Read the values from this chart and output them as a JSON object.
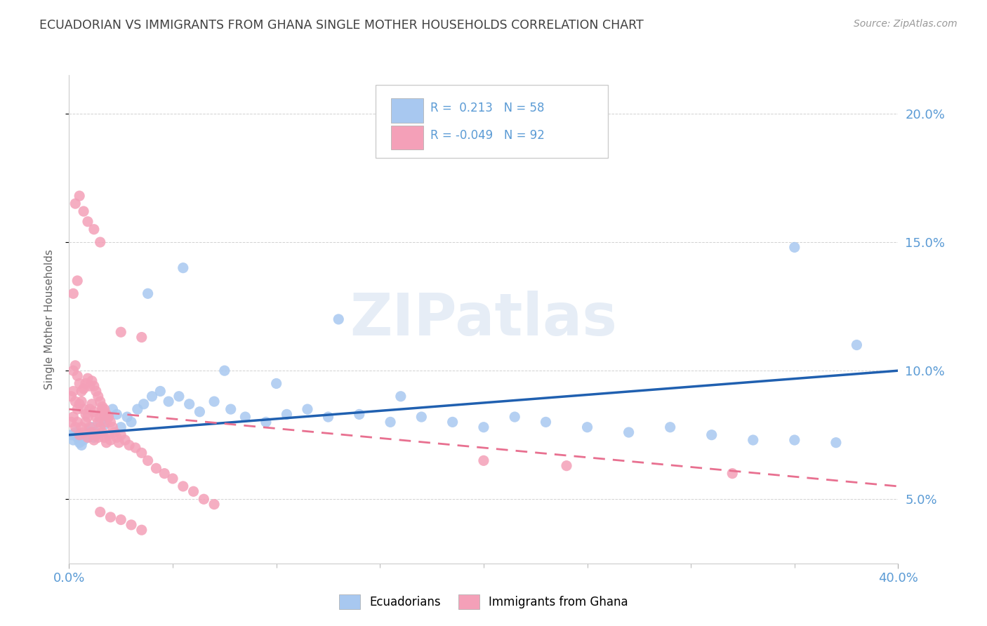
{
  "title": "ECUADORIAN VS IMMIGRANTS FROM GHANA SINGLE MOTHER HOUSEHOLDS CORRELATION CHART",
  "source": "Source: ZipAtlas.com",
  "ylabel": "Single Mother Households",
  "legend_blue": {
    "R": "0.213",
    "N": "58",
    "label": "Ecuadorians"
  },
  "legend_pink": {
    "R": "-0.049",
    "N": "92",
    "label": "Immigrants from Ghana"
  },
  "blue_color": "#a8c8f0",
  "pink_color": "#f4a0b8",
  "line_blue_color": "#2060b0",
  "line_pink_color": "#e87090",
  "yticks": [
    0.05,
    0.1,
    0.15,
    0.2
  ],
  "ytick_labels": [
    "5.0%",
    "10.0%",
    "15.0%",
    "20.0%"
  ],
  "xmin": 0.0,
  "xmax": 0.4,
  "ymin": 0.025,
  "ymax": 0.215,
  "blue_x": [
    0.001,
    0.002,
    0.003,
    0.004,
    0.005,
    0.006,
    0.007,
    0.008,
    0.009,
    0.01,
    0.011,
    0.012,
    0.013,
    0.015,
    0.017,
    0.019,
    0.021,
    0.023,
    0.025,
    0.028,
    0.03,
    0.033,
    0.036,
    0.04,
    0.044,
    0.048,
    0.053,
    0.058,
    0.063,
    0.07,
    0.078,
    0.085,
    0.095,
    0.105,
    0.115,
    0.125,
    0.14,
    0.155,
    0.17,
    0.185,
    0.2,
    0.215,
    0.23,
    0.25,
    0.27,
    0.29,
    0.31,
    0.33,
    0.35,
    0.37,
    0.038,
    0.055,
    0.075,
    0.1,
    0.13,
    0.16,
    0.35,
    0.38
  ],
  "blue_y": [
    0.075,
    0.073,
    0.076,
    0.074,
    0.072,
    0.071,
    0.073,
    0.075,
    0.074,
    0.076,
    0.078,
    0.074,
    0.076,
    0.08,
    0.079,
    0.082,
    0.085,
    0.083,
    0.078,
    0.082,
    0.08,
    0.085,
    0.087,
    0.09,
    0.092,
    0.088,
    0.09,
    0.087,
    0.084,
    0.088,
    0.085,
    0.082,
    0.08,
    0.083,
    0.085,
    0.082,
    0.083,
    0.08,
    0.082,
    0.08,
    0.078,
    0.082,
    0.08,
    0.078,
    0.076,
    0.078,
    0.075,
    0.073,
    0.073,
    0.072,
    0.13,
    0.14,
    0.1,
    0.095,
    0.12,
    0.09,
    0.148,
    0.11
  ],
  "pink_x": [
    0.001,
    0.002,
    0.003,
    0.004,
    0.005,
    0.006,
    0.007,
    0.008,
    0.009,
    0.01,
    0.011,
    0.012,
    0.013,
    0.014,
    0.015,
    0.016,
    0.017,
    0.018,
    0.019,
    0.02,
    0.001,
    0.002,
    0.003,
    0.004,
    0.005,
    0.006,
    0.007,
    0.008,
    0.009,
    0.01,
    0.011,
    0.012,
    0.013,
    0.014,
    0.015,
    0.016,
    0.017,
    0.018,
    0.019,
    0.02,
    0.021,
    0.022,
    0.023,
    0.024,
    0.025,
    0.027,
    0.029,
    0.032,
    0.035,
    0.038,
    0.042,
    0.046,
    0.05,
    0.055,
    0.06,
    0.065,
    0.07,
    0.002,
    0.003,
    0.004,
    0.005,
    0.006,
    0.007,
    0.008,
    0.009,
    0.01,
    0.011,
    0.012,
    0.013,
    0.014,
    0.015,
    0.016,
    0.017,
    0.018,
    0.003,
    0.005,
    0.007,
    0.009,
    0.012,
    0.015,
    0.025,
    0.035,
    0.2,
    0.24,
    0.32,
    0.015,
    0.02,
    0.025,
    0.03,
    0.035,
    0.002,
    0.004
  ],
  "pink_y": [
    0.08,
    0.082,
    0.078,
    0.08,
    0.075,
    0.078,
    0.076,
    0.08,
    0.074,
    0.078,
    0.076,
    0.073,
    0.075,
    0.074,
    0.078,
    0.076,
    0.074,
    0.072,
    0.075,
    0.073,
    0.09,
    0.092,
    0.088,
    0.085,
    0.087,
    0.088,
    0.085,
    0.083,
    0.082,
    0.085,
    0.087,
    0.084,
    0.082,
    0.08,
    0.082,
    0.085,
    0.083,
    0.08,
    0.082,
    0.08,
    0.078,
    0.076,
    0.074,
    0.072,
    0.075,
    0.073,
    0.071,
    0.07,
    0.068,
    0.065,
    0.062,
    0.06,
    0.058,
    0.055,
    0.053,
    0.05,
    0.048,
    0.1,
    0.102,
    0.098,
    0.095,
    0.092,
    0.093,
    0.095,
    0.097,
    0.094,
    0.096,
    0.094,
    0.092,
    0.09,
    0.088,
    0.086,
    0.085,
    0.083,
    0.165,
    0.168,
    0.162,
    0.158,
    0.155,
    0.15,
    0.115,
    0.113,
    0.065,
    0.063,
    0.06,
    0.045,
    0.043,
    0.042,
    0.04,
    0.038,
    0.13,
    0.135
  ],
  "blue_trend_x": [
    0.0,
    0.4
  ],
  "blue_trend_y": [
    0.075,
    0.1
  ],
  "pink_trend_x": [
    0.0,
    0.4
  ],
  "pink_trend_y": [
    0.085,
    0.055
  ],
  "watermark": "ZIPatlas",
  "background_color": "#ffffff",
  "grid_color": "#cccccc",
  "title_color": "#404040",
  "axis_color": "#5b9bd5"
}
